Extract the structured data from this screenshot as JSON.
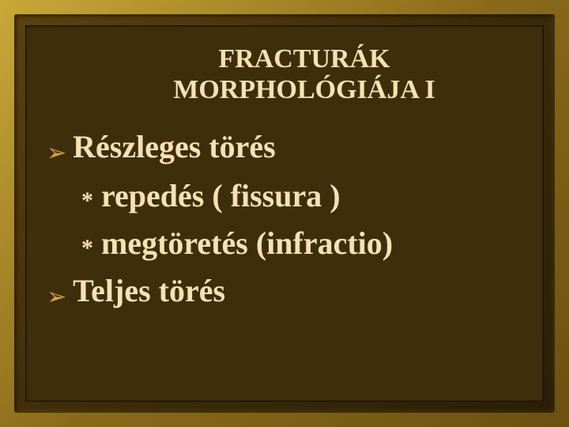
{
  "slide": {
    "title_line1": "FRACTURÁK",
    "title_line2": "MORPHOLÓGIÁJA I",
    "items": [
      {
        "bullet": "chevron",
        "text": "Részleges törés"
      },
      {
        "bullet": "asterisk",
        "text": "repedés ( fissura )"
      },
      {
        "bullet": "asterisk",
        "text": "megtöretés (infractio)"
      },
      {
        "bullet": "chevron",
        "text": "Teljes törés"
      }
    ]
  },
  "style": {
    "background_color": "#3f2e0c",
    "frame_gold_light": "#c9a838",
    "frame_gold_dark": "#6b5010",
    "text_color": "#f5e1b3",
    "chevron_color": "#d9a23a",
    "title_fontsize_pt": 26,
    "body_fontsize_pt": 30,
    "font_family": "Times New Roman",
    "font_weight": "bold"
  }
}
